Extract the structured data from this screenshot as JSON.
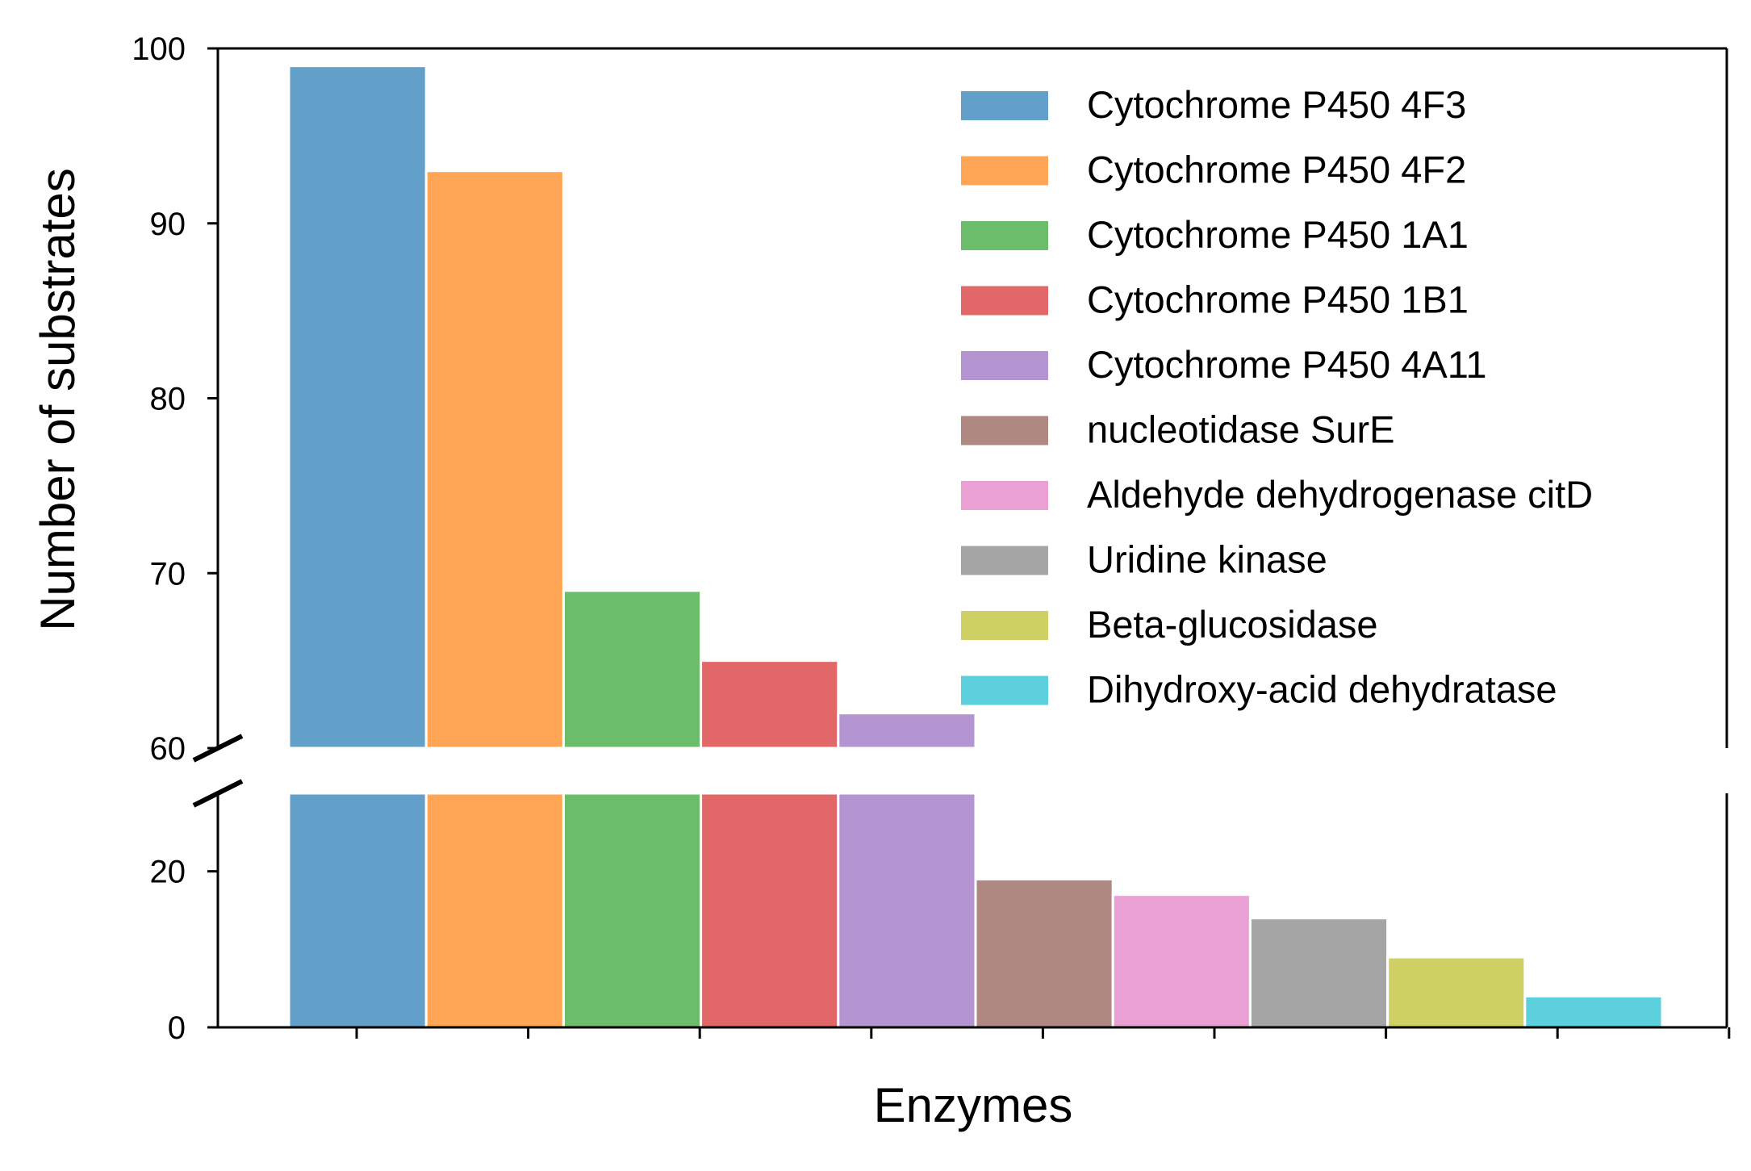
{
  "chart_data": {
    "type": "bar",
    "xlabel": "Enzymes",
    "ylabel": "Number of substrates",
    "broken_axis": true,
    "upper_ylim": [
      60,
      100
    ],
    "lower_ylim": [
      0,
      30
    ],
    "upper_yticks": [
      "60",
      "70",
      "80",
      "90",
      "100"
    ],
    "lower_yticks": [
      "0",
      "20"
    ],
    "legend_position": "upper-right",
    "categories": [
      "Cytochrome P450 4F3",
      "Cytochrome P450 4F2",
      "Cytochrome P450 1A1",
      "Cytochrome P450 1B1",
      "Cytochrome P450 4A11",
      "nucleotidase SurE",
      "Aldehyde dehydrogenase citD",
      "Uridine kinase",
      "Beta-glucosidase",
      "Dihydroxy-acid dehydratase"
    ],
    "values": [
      99,
      93,
      69,
      65,
      62,
      19,
      17,
      14,
      9,
      4
    ],
    "colors": [
      "#1f77b4",
      "#ff7f0e",
      "#2ca02c",
      "#d62728",
      "#9467bd",
      "#8c564b",
      "#e377c2",
      "#7f7f7f",
      "#bcbd22",
      "#17becf"
    ],
    "bar_opacity": 0.7
  }
}
